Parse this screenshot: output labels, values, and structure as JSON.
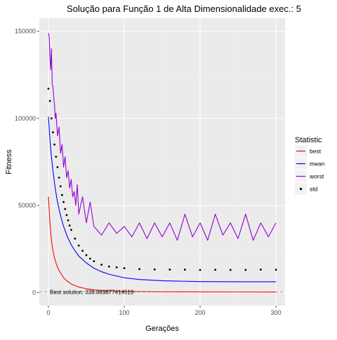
{
  "chart_data": {
    "type": "line",
    "title": "Solução para Função 1 de Alta Dimensionalidade exec.: 5",
    "xlabel": "Gerações",
    "ylabel": "Fitness",
    "xlim": [
      -12,
      312
    ],
    "ylim": [
      -7500,
      157500
    ],
    "xticks": [
      0,
      100,
      200,
      300
    ],
    "yticks": [
      0,
      50000,
      100000,
      150000
    ],
    "xtick_labels": [
      "0",
      "100",
      "200",
      "300"
    ],
    "ytick_labels": [
      "0",
      "50000",
      "100000",
      "150000"
    ],
    "grid": true,
    "legend": {
      "title": "Statistic",
      "placement": "right",
      "entries": [
        {
          "label": "best",
          "style": "line",
          "color": "#ff0000"
        },
        {
          "label": "mean",
          "style": "line",
          "color": "#0000ff"
        },
        {
          "label": "worst",
          "style": "line",
          "color": "#9400d3"
        },
        {
          "label": "std",
          "style": "point",
          "color": "#000000"
        }
      ]
    },
    "annotation": {
      "text": "Best solution: 338.889877414519",
      "x": 2,
      "y": 338.889877414519
    },
    "reference_line": {
      "y": 338.889877414519,
      "style": "dashed",
      "color": "#999999"
    },
    "series": [
      {
        "name": "best",
        "color": "#ff0000",
        "style": "line",
        "x": [
          0,
          2,
          4,
          6,
          8,
          10,
          12,
          15,
          18,
          20,
          25,
          30,
          35,
          40,
          50,
          60,
          70,
          80,
          90,
          100,
          120,
          150,
          200,
          250,
          300
        ],
        "y": [
          55000,
          40000,
          30000,
          24000,
          20000,
          17000,
          14500,
          12000,
          10000,
          8500,
          6500,
          5000,
          4000,
          3200,
          2200,
          1600,
          1200,
          1000,
          850,
          700,
          550,
          450,
          380,
          350,
          339
        ]
      },
      {
        "name": "mean",
        "color": "#0000ff",
        "style": "line",
        "x": [
          0,
          2,
          4,
          6,
          8,
          10,
          12,
          15,
          18,
          20,
          25,
          30,
          35,
          40,
          50,
          60,
          70,
          80,
          90,
          100,
          120,
          150,
          200,
          250,
          300
        ],
        "y": [
          101000,
          88000,
          78000,
          70000,
          63000,
          57000,
          52000,
          46000,
          41000,
          38000,
          32000,
          27500,
          24000,
          21000,
          17000,
          14000,
          12000,
          10500,
          9500,
          8500,
          7500,
          6800,
          6300,
          6200,
          6200
        ]
      },
      {
        "name": "worst",
        "color": "#9400d3",
        "style": "line",
        "x": [
          0,
          1,
          2,
          3,
          4,
          5,
          6,
          7,
          8,
          9,
          10,
          12,
          14,
          16,
          18,
          20,
          22,
          24,
          26,
          28,
          30,
          32,
          34,
          36,
          38,
          40,
          45,
          50,
          55,
          60,
          70,
          80,
          90,
          100,
          110,
          120,
          130,
          140,
          150,
          160,
          170,
          180,
          190,
          200,
          210,
          220,
          230,
          240,
          250,
          260,
          270,
          280,
          290,
          300
        ],
        "y": [
          149000,
          147000,
          135000,
          128000,
          140000,
          120000,
          118000,
          112000,
          108000,
          100000,
          103000,
          90000,
          95000,
          80000,
          85000,
          72000,
          78000,
          66000,
          70000,
          60000,
          65000,
          55000,
          58000,
          50000,
          62000,
          45000,
          55000,
          40000,
          52000,
          38000,
          33000,
          40000,
          34000,
          38000,
          32000,
          40000,
          31000,
          40000,
          32000,
          40000,
          30000,
          45000,
          32000,
          40000,
          30000,
          45000,
          33000,
          40000,
          31000,
          45000,
          30000,
          40000,
          32000,
          40000
        ]
      },
      {
        "name": "std",
        "color": "#000000",
        "style": "point",
        "x": [
          0,
          2,
          4,
          6,
          8,
          10,
          12,
          14,
          16,
          18,
          20,
          22,
          24,
          26,
          28,
          30,
          35,
          40,
          45,
          50,
          55,
          60,
          70,
          80,
          90,
          100,
          120,
          140,
          160,
          180,
          200,
          220,
          240,
          260,
          280,
          300
        ],
        "y": [
          117000,
          110000,
          100000,
          92000,
          85000,
          78000,
          72000,
          66000,
          61000,
          56000,
          52000,
          48000,
          44500,
          41500,
          38500,
          36000,
          31000,
          27000,
          24000,
          21500,
          19500,
          18000,
          16000,
          15000,
          14500,
          14000,
          13500,
          13300,
          13200,
          13200,
          13000,
          13100,
          13000,
          13000,
          13200,
          13100
        ]
      }
    ]
  }
}
